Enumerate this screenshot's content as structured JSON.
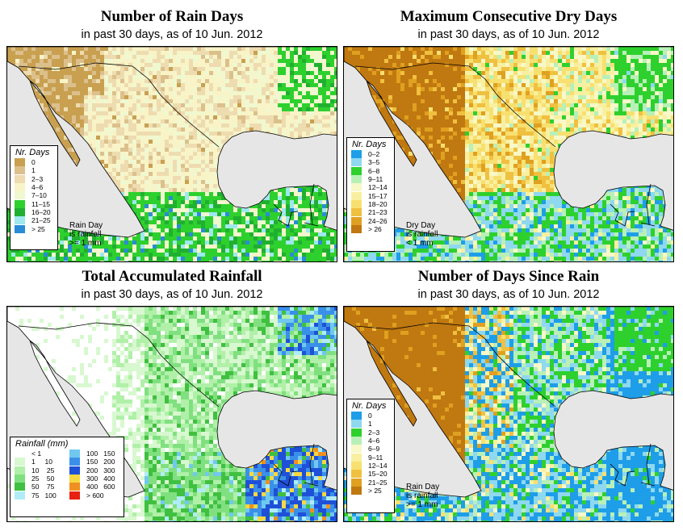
{
  "panels": [
    {
      "id": "rain_days",
      "title": "Number of Rain Days",
      "subtitle": "in past 30 days, as of  10 Jun. 2012",
      "legend_title": "Nr. Days",
      "legend": [
        {
          "label": "0",
          "color": "#c8a050"
        },
        {
          "label": "1",
          "color": "#dcc08c"
        },
        {
          "label": "2–3",
          "color": "#eedcb0"
        },
        {
          "label": "4–6",
          "color": "#f8f4c8"
        },
        {
          "label": "7–10",
          "color": "#f0f8d0"
        },
        {
          "label": "11–15",
          "color": "#2ed02e"
        },
        {
          "label": "16–20",
          "color": "#20b030"
        },
        {
          "label": "21–25",
          "color": "#9ee8ee"
        },
        {
          "label": "> 25",
          "color": "#2a8cd6"
        }
      ],
      "note": [
        "Rain Day",
        "is rainfall",
        ">= 1 mm"
      ]
    },
    {
      "id": "dry_days",
      "title": "Maximum Consecutive Dry Days",
      "subtitle": "in past 30 days, as of  10 Jun. 2012",
      "legend_title": "Nr. Days",
      "legend": [
        {
          "label": "0–2",
          "color": "#1e9ee8"
        },
        {
          "label": "3–5",
          "color": "#8ed8f0"
        },
        {
          "label": "6–8",
          "color": "#2ed02e"
        },
        {
          "label": "9–11",
          "color": "#b8f0b8"
        },
        {
          "label": "12–14",
          "color": "#f8f8c8"
        },
        {
          "label": "15–17",
          "color": "#f8f0a0"
        },
        {
          "label": "18–20",
          "color": "#f8e070"
        },
        {
          "label": "21–23",
          "color": "#f0c040"
        },
        {
          "label": "24–26",
          "color": "#e0a020"
        },
        {
          "label": "> 26",
          "color": "#c07810"
        }
      ],
      "note": [
        "Dry Day",
        "is rainfall",
        "< 1 mm"
      ]
    },
    {
      "id": "total_rainfall",
      "title": "Total Accumulated Rainfall",
      "subtitle": "in past 30 days, as of  10 Jun. 2012",
      "legend_title": "Rainfall (mm)",
      "legend_left": [
        {
          "label": "< 1",
          "color": "#ffffff"
        },
        {
          "label": "1     10",
          "color": "#d8f8d0"
        },
        {
          "label": "10    25",
          "color": "#b0f0a8"
        },
        {
          "label": "25    50",
          "color": "#80e080"
        },
        {
          "label": "50    75",
          "color": "#40c040"
        },
        {
          "label": "75   100",
          "color": "#b0ecf8"
        }
      ],
      "legend_right": [
        {
          "label": "100   150",
          "color": "#70c8f0"
        },
        {
          "label": "150   200",
          "color": "#3a90e8"
        },
        {
          "label": "200   300",
          "color": "#1e50d8"
        },
        {
          "label": "300   400",
          "color": "#f8d840"
        },
        {
          "label": "400   600",
          "color": "#f09020"
        },
        {
          "label": "> 600",
          "color": "#e82010"
        }
      ]
    },
    {
      "id": "days_since_rain",
      "title": "Number of Days Since Rain",
      "subtitle": "in past 30 days, as of  10 Jun. 2012",
      "legend_title": "Nr. Days",
      "legend": [
        {
          "label": "0",
          "color": "#1e9ee8"
        },
        {
          "label": "1",
          "color": "#8ed8f0"
        },
        {
          "label": "2–3",
          "color": "#2ed02e"
        },
        {
          "label": "4–6",
          "color": "#b8f0b8"
        },
        {
          "label": "6–9",
          "color": "#f8f8c8"
        },
        {
          "label": "9–11",
          "color": "#f8f0a0"
        },
        {
          "label": "12–14",
          "color": "#f8e070"
        },
        {
          "label": "15–20",
          "color": "#f0c040"
        },
        {
          "label": "21–25",
          "color": "#e0a020"
        },
        {
          "label": "> 25",
          "color": "#c07810"
        }
      ],
      "note": [
        "Rain Day",
        "is rainfall",
        ">= 1 mm"
      ]
    }
  ],
  "colors": {
    "ocean": "#e6e6e6",
    "border": "#000000"
  }
}
